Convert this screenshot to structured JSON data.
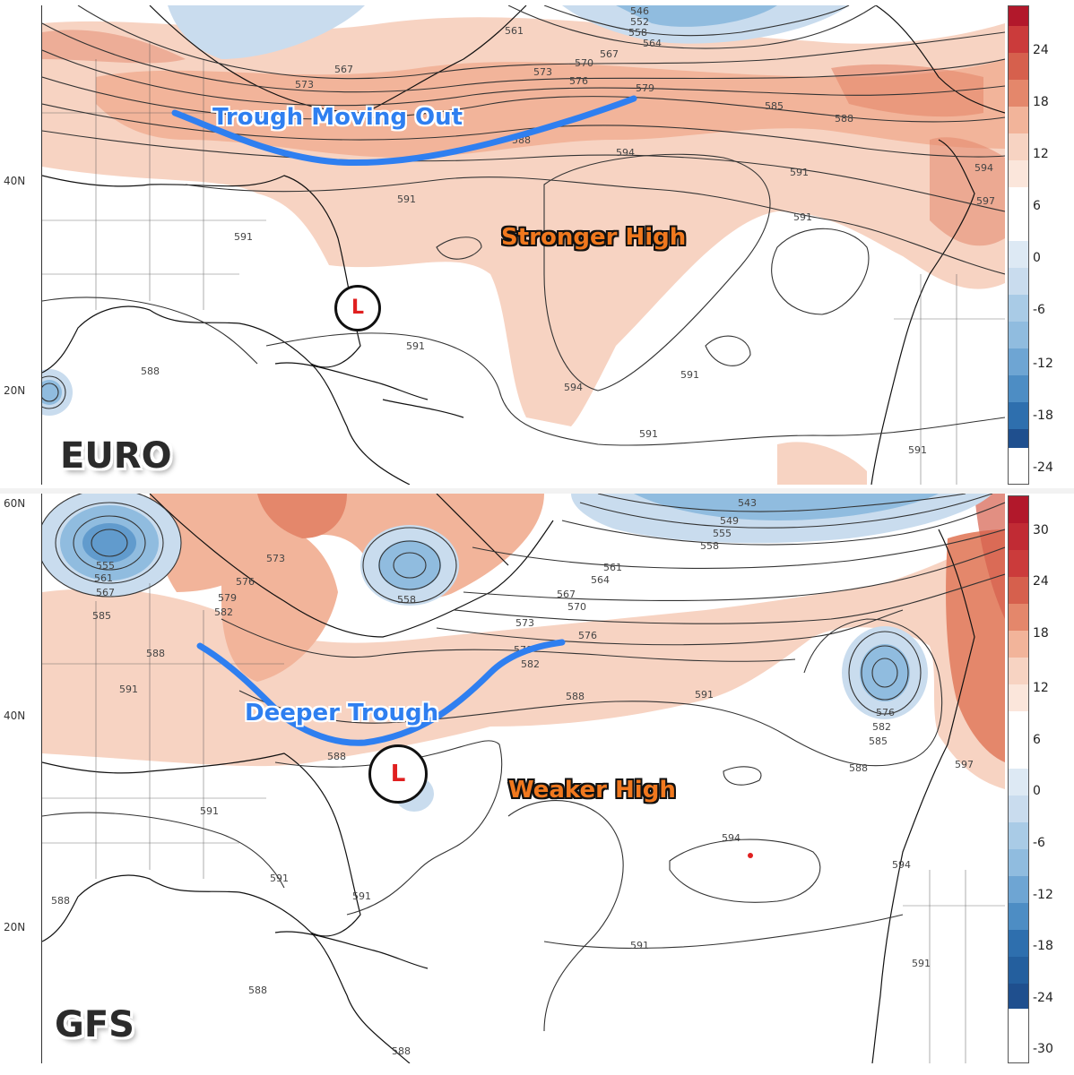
{
  "panels": [
    {
      "model": "EURO",
      "latitudes": [
        "40N",
        "20N"
      ],
      "annotations": {
        "trough": "Trough Moving Out",
        "high": "Stronger High",
        "low": "L"
      },
      "contour_labels": [
        "546",
        "552",
        "558",
        "561",
        "564",
        "567",
        "570",
        "573",
        "576",
        "579",
        "585",
        "588",
        "591",
        "594",
        "597",
        "588",
        "591",
        "594",
        "591",
        "591",
        "591"
      ],
      "colorbar": {
        "ticks": [
          "24",
          "18",
          "12",
          "6",
          "0",
          "-6",
          "-12",
          "-18",
          "-24"
        ]
      }
    },
    {
      "model": "GFS",
      "latitudes": [
        "60N",
        "40N",
        "20N"
      ],
      "annotations": {
        "trough": "Deeper Trough",
        "high": "Weaker High",
        "low": "L"
      },
      "contour_labels": [
        "543",
        "549",
        "555",
        "558",
        "561",
        "564",
        "567",
        "570",
        "573",
        "576",
        "579",
        "582",
        "585",
        "588",
        "591",
        "594",
        "597",
        "555",
        "561",
        "567",
        "573",
        "576",
        "579",
        "582",
        "585",
        "588",
        "591",
        "558",
        "576",
        "582",
        "585",
        "588",
        "591",
        "594",
        "594",
        "591",
        "588",
        "588",
        "591"
      ],
      "colorbar": {
        "ticks": [
          "30",
          "24",
          "18",
          "12",
          "6",
          "0",
          "-6",
          "-12",
          "-18",
          "-24",
          "-30"
        ]
      }
    }
  ],
  "colors": {
    "warm_light": "#f7d3c2",
    "warm_mid": "#f2b49a",
    "warm_strong": "#e4876b",
    "cool_light": "#c9dcee",
    "cool_mid": "#90bcdf",
    "cool_strong": "#4d8dc4",
    "trough_line": "#2f7ff0",
    "low_letter": "#e02020"
  }
}
